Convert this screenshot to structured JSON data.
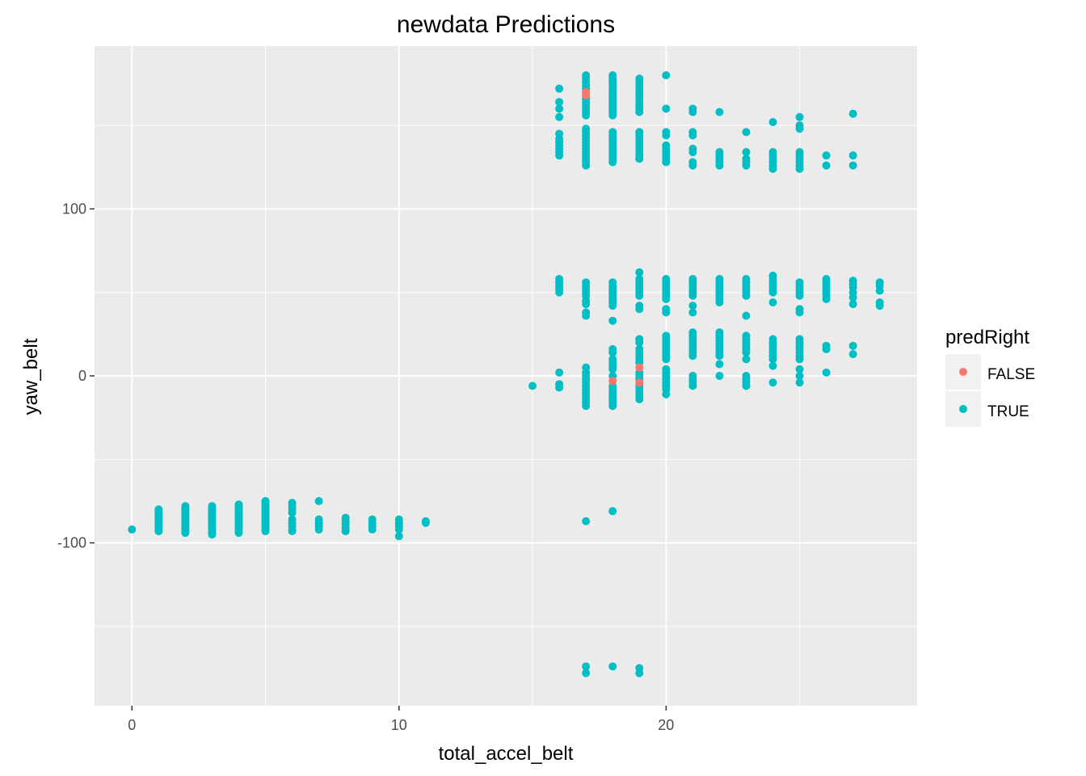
{
  "chart_data": {
    "type": "scatter",
    "title": "newdata Predictions",
    "xlabel": "total_accel_belt",
    "ylabel": "yaw_belt",
    "xlim": [
      -1.4,
      29.4
    ],
    "ylim": [
      -197.5,
      197.5
    ],
    "x_ticks": [
      0,
      10,
      20
    ],
    "y_ticks": [
      -100,
      0,
      100
    ],
    "x_tick_labels": [
      "0",
      "10",
      "20"
    ],
    "y_tick_labels": [
      "-100",
      "0",
      "100"
    ],
    "grid": true,
    "background": "#ebebeb",
    "legend": {
      "title": "predRight",
      "position": "right",
      "entries": [
        {
          "label": "FALSE",
          "color": "#f8766d"
        },
        {
          "label": "TRUE",
          "color": "#00bfc4"
        }
      ]
    },
    "clusters": [
      {
        "x": 0,
        "ys": [
          -92
        ]
      },
      {
        "x": 1,
        "ys": [
          -80,
          -81,
          -82,
          -83,
          -84,
          -85,
          -86,
          -87,
          -88,
          -89,
          -90,
          -91,
          -92,
          -93
        ]
      },
      {
        "x": 2,
        "ys": [
          -78,
          -79,
          -80,
          -81,
          -82,
          -83,
          -84,
          -85,
          -86,
          -87,
          -88,
          -89,
          -90,
          -91,
          -92,
          -93,
          -94
        ]
      },
      {
        "x": 3,
        "ys": [
          -78,
          -79,
          -80,
          -81,
          -82,
          -83,
          -84,
          -85,
          -86,
          -87,
          -88,
          -89,
          -90,
          -91,
          -92,
          -93,
          -94,
          -95
        ]
      },
      {
        "x": 4,
        "ys": [
          -77,
          -78,
          -79,
          -80,
          -81,
          -82,
          -83,
          -84,
          -85,
          -86,
          -87,
          -88,
          -89,
          -90,
          -91,
          -92,
          -93,
          -94
        ]
      },
      {
        "x": 5,
        "ys": [
          -75,
          -76,
          -77,
          -78,
          -79,
          -80,
          -81,
          -82,
          -83,
          -84,
          -85,
          -86,
          -87,
          -88,
          -89,
          -90,
          -91,
          -92,
          -93
        ]
      },
      {
        "x": 6,
        "ys": [
          -76,
          -78,
          -80,
          -82,
          -86,
          -88,
          -90,
          -92,
          -93
        ]
      },
      {
        "x": 7,
        "ys": [
          -75,
          -86,
          -88,
          -90,
          -92
        ]
      },
      {
        "x": 8,
        "ys": [
          -85,
          -87,
          -89,
          -91,
          -93
        ]
      },
      {
        "x": 9,
        "ys": [
          -86,
          -88,
          -90,
          -92
        ]
      },
      {
        "x": 10,
        "ys": [
          -86,
          -88,
          -90,
          -92,
          -96
        ]
      },
      {
        "x": 11,
        "ys": [
          -87,
          -88
        ]
      },
      {
        "x": 15,
        "ys": [
          -6
        ]
      },
      {
        "x": 16,
        "ys": [
          172,
          164,
          160,
          155,
          145,
          142,
          140,
          138,
          136,
          134,
          132,
          58,
          56,
          54,
          52,
          50,
          2,
          -5,
          -7
        ]
      },
      {
        "x": 17,
        "ys": [
          180,
          178,
          176,
          174,
          172,
          168,
          166,
          164,
          162,
          160,
          158,
          156,
          148,
          146,
          144,
          142,
          140,
          138,
          136,
          134,
          132,
          130,
          128,
          126,
          56,
          54,
          52,
          50,
          48,
          45,
          43,
          38,
          36,
          5,
          2,
          0,
          -2,
          -4,
          -6,
          -8,
          -10,
          -12,
          -14,
          -16,
          -18,
          -87,
          -174,
          -178
        ]
      },
      {
        "x": 18,
        "ys": [
          180,
          178,
          176,
          174,
          172,
          170,
          168,
          166,
          164,
          162,
          160,
          158,
          156,
          146,
          144,
          142,
          140,
          138,
          136,
          134,
          132,
          130,
          128,
          56,
          54,
          52,
          50,
          48,
          46,
          44,
          42,
          33,
          16,
          14,
          10,
          8,
          6,
          4,
          0,
          -6,
          -8,
          -10,
          -12,
          -14,
          -16,
          -18,
          -81,
          -174
        ]
      },
      {
        "x": 19,
        "ys": [
          178,
          176,
          174,
          172,
          170,
          168,
          166,
          164,
          162,
          160,
          158,
          146,
          144,
          142,
          140,
          138,
          136,
          134,
          132,
          130,
          62,
          58,
          56,
          54,
          52,
          50,
          48,
          42,
          40,
          22,
          20,
          16,
          14,
          12,
          10,
          8,
          2,
          0,
          -2,
          -6,
          -8,
          -10,
          -12,
          -14,
          -175,
          -178
        ]
      },
      {
        "x": 20,
        "ys": [
          180,
          160,
          146,
          144,
          138,
          136,
          134,
          132,
          130,
          128,
          58,
          56,
          54,
          52,
          50,
          48,
          46,
          40,
          38,
          24,
          22,
          20,
          18,
          16,
          14,
          12,
          10,
          4,
          2,
          0,
          -2,
          -4,
          -6,
          -8,
          -11
        ]
      },
      {
        "x": 21,
        "ys": [
          160,
          158,
          146,
          144,
          136,
          134,
          128,
          126,
          58,
          56,
          54,
          52,
          50,
          48,
          42,
          38,
          26,
          24,
          22,
          20,
          18,
          16,
          14,
          12,
          0,
          -2,
          -4,
          -6
        ]
      },
      {
        "x": 22,
        "ys": [
          158,
          134,
          132,
          130,
          128,
          126,
          58,
          56,
          54,
          52,
          50,
          48,
          46,
          44,
          26,
          24,
          22,
          20,
          18,
          16,
          14,
          12,
          7,
          0
        ]
      },
      {
        "x": 23,
        "ys": [
          146,
          134,
          130,
          128,
          126,
          58,
          56,
          54,
          52,
          50,
          48,
          36,
          24,
          22,
          20,
          18,
          16,
          14,
          10,
          0,
          -2,
          -4,
          -6
        ]
      },
      {
        "x": 24,
        "ys": [
          152,
          134,
          132,
          130,
          128,
          126,
          124,
          60,
          58,
          56,
          54,
          52,
          50,
          44,
          22,
          20,
          18,
          16,
          14,
          12,
          10,
          6,
          -4
        ]
      },
      {
        "x": 25,
        "ys": [
          155,
          150,
          148,
          134,
          132,
          130,
          128,
          126,
          124,
          56,
          54,
          52,
          50,
          48,
          40,
          38,
          22,
          20,
          18,
          16,
          14,
          12,
          10,
          4,
          0,
          -4
        ]
      },
      {
        "x": 26,
        "ys": [
          132,
          126,
          58,
          56,
          54,
          52,
          50,
          48,
          46,
          18,
          16,
          2
        ]
      },
      {
        "x": 27,
        "ys": [
          157,
          132,
          126,
          57,
          55,
          53,
          50,
          47,
          43,
          18,
          13
        ]
      },
      {
        "x": 28,
        "ys": [
          56,
          54,
          51,
          44,
          42
        ]
      }
    ],
    "false_points": [
      {
        "x": 17,
        "y": 170
      },
      {
        "x": 17,
        "y": 168
      },
      {
        "x": 18,
        "y": -3
      },
      {
        "x": 19,
        "y": 5
      },
      {
        "x": 19,
        "y": -4
      }
    ]
  }
}
